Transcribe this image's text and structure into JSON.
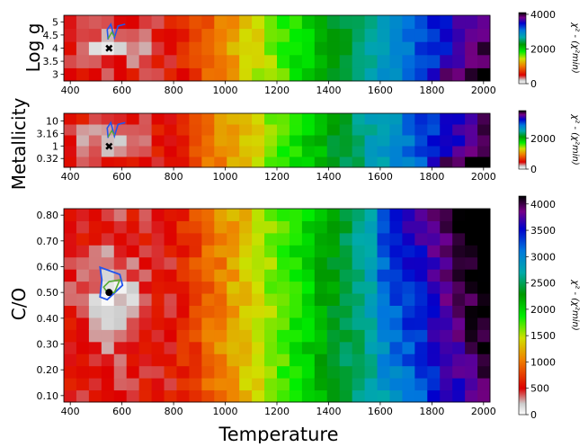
{
  "chart_data": [
    {
      "type": "heatmap",
      "panel": "top",
      "xlabel": "",
      "ylabel": "Log g",
      "x_ticks": [
        "400",
        "600",
        "800",
        "1000",
        "1200",
        "1400",
        "1600",
        "1800",
        "2000"
      ],
      "y_ticks": [
        "5",
        "4.5",
        "4",
        "3.5",
        "3"
      ],
      "xlim": [
        375,
        2025
      ],
      "colorbar": {
        "label": "χ² - (χ²min)",
        "ticks": [
          "4000",
          "2000",
          "0"
        ],
        "range": [
          0,
          4100
        ]
      },
      "best_fit": {
        "temperature": 550,
        "value": "4"
      },
      "contour_center": {
        "temperature": 550,
        "value": "4.5"
      }
    },
    {
      "type": "heatmap",
      "panel": "middle",
      "xlabel": "",
      "ylabel": "Metallicity",
      "x_ticks": [
        "400",
        "600",
        "800",
        "1000",
        "1200",
        "1400",
        "1600",
        "1800",
        "2000"
      ],
      "y_ticks": [
        "10",
        "3.16",
        "1",
        "0.32"
      ],
      "xlim": [
        375,
        2025
      ],
      "colorbar": {
        "label": "χ² - (χ²min)",
        "ticks": [
          "2000",
          "0"
        ],
        "range": [
          0,
          3800
        ]
      },
      "best_fit": {
        "temperature": 550,
        "value": "1"
      },
      "contour_center": {
        "temperature": 550,
        "value": "3.16"
      }
    },
    {
      "type": "heatmap",
      "panel": "bottom",
      "xlabel": "Temperature",
      "ylabel": "C/O",
      "x_ticks": [
        "400",
        "600",
        "800",
        "1000",
        "1200",
        "1400",
        "1600",
        "1800",
        "2000"
      ],
      "y_ticks": [
        "0.80",
        "0.70",
        "0.60",
        "0.50",
        "0.40",
        "0.30",
        "0.20",
        "0.10"
      ],
      "xlim": [
        375,
        2025
      ],
      "ylim": [
        0.075,
        0.825
      ],
      "colorbar": {
        "label": "χ² - (χ²min)",
        "ticks": [
          "4000",
          "3500",
          "3000",
          "2500",
          "2000",
          "1500",
          "1000",
          "500",
          "0"
        ],
        "range": [
          0,
          4150
        ]
      },
      "best_fit": {
        "temperature": 550,
        "co": 0.5
      }
    }
  ],
  "colormap": "nipy_spectral_r"
}
